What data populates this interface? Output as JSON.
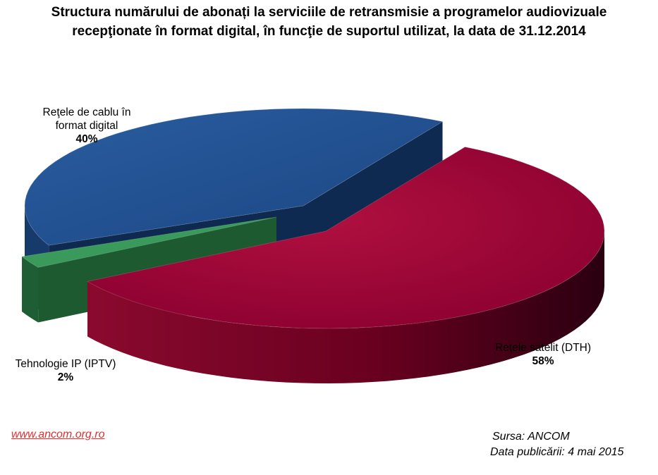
{
  "chart_data": {
    "type": "pie",
    "title_lines": [
      "Structura numărului de abonați la serviciile de retransmisie a programelor audiovizuale",
      "recepţionate în format digital, în funcţie de suportul utilizat,  la data de 31.12.2014"
    ],
    "slices": [
      {
        "name": "Reţele de cablu în format digital",
        "name_lines": [
          "Reţele de cablu în",
          "format digital"
        ],
        "value": 40,
        "label": "40%",
        "color": "#1f4e8c"
      },
      {
        "name": "Reţele satelit (DTH)",
        "name_lines": [
          "Reţele satelit (DTH)"
        ],
        "value": 58,
        "label": "58%",
        "color": "#a0003a"
      },
      {
        "name": "Tehnologie IP (IPTV)",
        "name_lines": [
          "Tehnologie IP (IPTV)"
        ],
        "value": 2,
        "label": "2%",
        "color": "#2e8b4f"
      }
    ]
  },
  "footer": {
    "link": "www.ancom.org.ro",
    "source": "Sursa: ANCOM",
    "date": "Data publicării: 4 mai 2015"
  }
}
